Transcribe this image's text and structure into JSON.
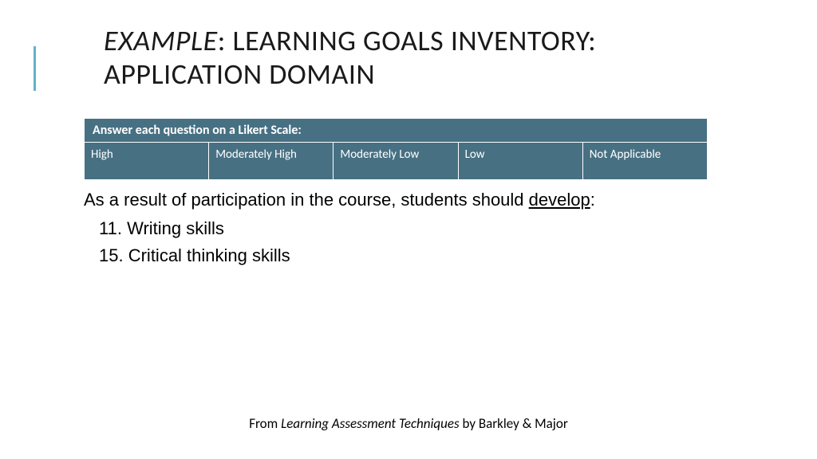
{
  "title": {
    "prefix_italic": "EXAMPLE",
    "line1_rest": ": LEARNING GOALS INVENTORY:",
    "line2": "APPLICATION DOMAIN"
  },
  "accent_color": "#5fb4c8",
  "likert": {
    "header": "Answer each question on a Likert Scale:",
    "header_bg": "#477083",
    "header_fg": "#ffffff",
    "cell_bg": "#477083",
    "cell_fg": "#ffffff",
    "options": [
      "High",
      "Moderately High",
      "Moderately Low",
      "Low",
      "Not Applicable"
    ]
  },
  "intro": {
    "text_before": "As a result of participation in the course, students should ",
    "underlined": "develop",
    "text_after": ":"
  },
  "items": [
    {
      "num": "11.",
      "label": "Writing skills"
    },
    {
      "num": "15.",
      "label": "Critical thinking skills"
    }
  ],
  "citation": {
    "before": "From ",
    "italic": "Learning Assessment Techniques",
    "after": " by Barkley & Major"
  }
}
